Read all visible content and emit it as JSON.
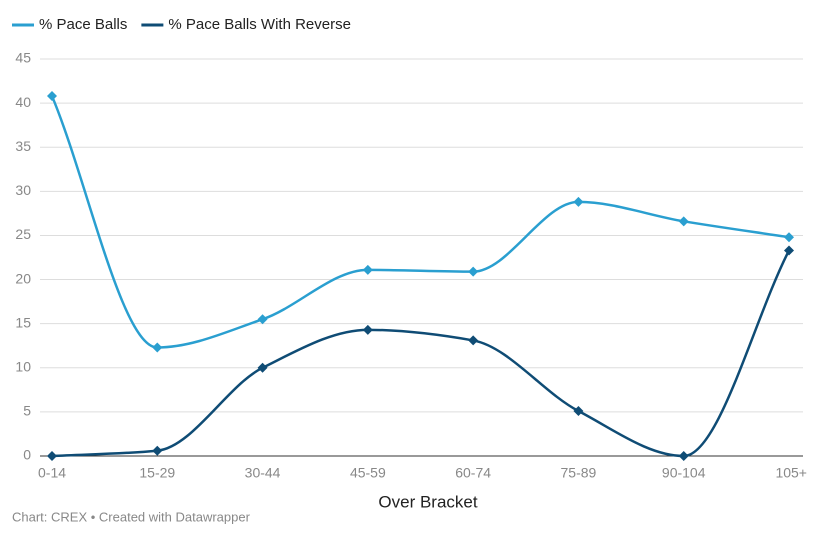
{
  "chart_data": {
    "type": "line",
    "categories": [
      "0-14",
      "15-29",
      "30-44",
      "45-59",
      "60-74",
      "75-89",
      "90-104",
      "105+"
    ],
    "series": [
      {
        "name": "% Pace Balls",
        "color": "#2a9fd0",
        "values": [
          40.8,
          12.3,
          15.5,
          21.1,
          20.9,
          28.8,
          26.6,
          24.8
        ]
      },
      {
        "name": "% Pace Balls With Reverse",
        "color": "#0f4c75",
        "values": [
          0,
          0.6,
          10.0,
          14.3,
          13.1,
          5.1,
          0,
          23.3
        ]
      }
    ],
    "ylim": [
      0,
      45
    ],
    "yticks": [
      0,
      5,
      10,
      15,
      20,
      25,
      30,
      35,
      40,
      45
    ],
    "grid": true,
    "x_label": "Over Bracket",
    "footer": "Chart: CREX • Created with Datawrapper"
  }
}
